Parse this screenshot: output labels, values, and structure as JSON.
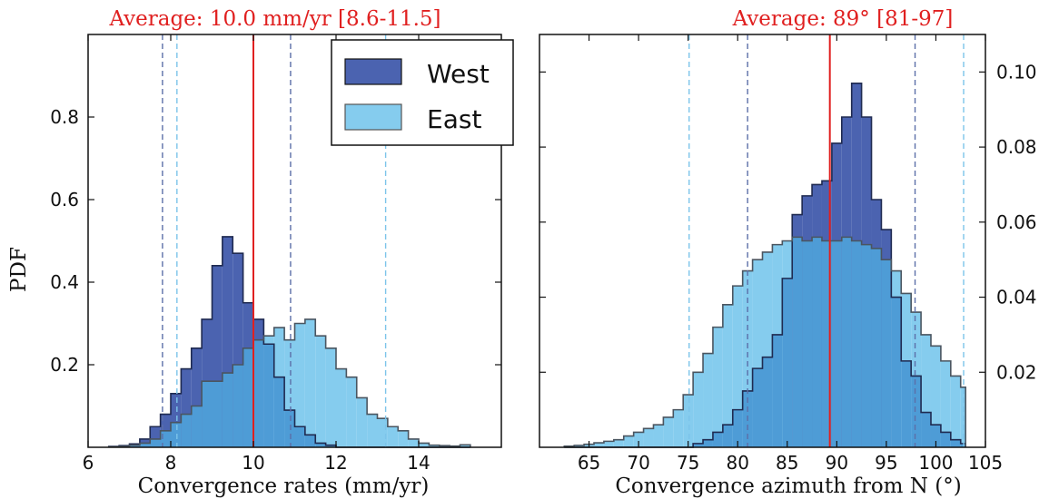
{
  "figure": {
    "ylabel": "PDF"
  },
  "legend": {
    "placement": "top-right of left panel",
    "entries": [
      {
        "label": "West",
        "color": "#4B63B0"
      },
      {
        "label": "East",
        "color": "#85CCEE"
      }
    ]
  },
  "colors": {
    "west": "#4B63B0",
    "east": "#85CCEE",
    "overlap": "#4E9CD6",
    "average_line": "#E02020",
    "title": "#E02020",
    "west_interval_line": "#5C6FA8",
    "east_interval_line": "#7CC4EA"
  },
  "chart_data": [
    {
      "type": "histogram",
      "panel": "left",
      "title": "Average: 10.0 mm/yr [8.6-11.5]",
      "xlabel": "Convergence rates (mm/yr)",
      "ylabel": "PDF",
      "xlim": [
        6,
        16
      ],
      "ylim": [
        0,
        1.0
      ],
      "xticks": [
        6,
        8,
        10,
        12,
        14
      ],
      "yticks": [
        0.2,
        0.4,
        0.6,
        0.8
      ],
      "ytick_labels": [
        "0.2",
        "0.4",
        "0.6",
        "0.8"
      ],
      "grid": false,
      "bin_edges": [
        6.5,
        6.75,
        7.0,
        7.25,
        7.5,
        7.75,
        8.0,
        8.25,
        8.5,
        8.75,
        9.0,
        9.25,
        9.5,
        9.75,
        10.0,
        10.25,
        10.5,
        10.75,
        11.0,
        11.25,
        11.5,
        11.75,
        12.0,
        12.25,
        12.5,
        12.75,
        13.0,
        13.25,
        13.5,
        13.75,
        14.0,
        14.25,
        14.5,
        14.75,
        15.0,
        15.25
      ],
      "series": [
        {
          "name": "West",
          "values": [
            0.002,
            0.004,
            0.008,
            0.02,
            0.05,
            0.08,
            0.13,
            0.19,
            0.24,
            0.31,
            0.44,
            0.51,
            0.47,
            0.35,
            0.31,
            0.25,
            0.17,
            0.09,
            0.05,
            0.03,
            0.01,
            0.005,
            0,
            0,
            0,
            0,
            0,
            0,
            0,
            0,
            0,
            0,
            0,
            0,
            0
          ]
        },
        {
          "name": "East",
          "values": [
            0.001,
            0.002,
            0.005,
            0.01,
            0.02,
            0.04,
            0.06,
            0.08,
            0.1,
            0.16,
            0.16,
            0.18,
            0.2,
            0.24,
            0.26,
            0.27,
            0.29,
            0.26,
            0.3,
            0.31,
            0.27,
            0.24,
            0.19,
            0.17,
            0.12,
            0.08,
            0.07,
            0.05,
            0.04,
            0.02,
            0.01,
            0.005,
            0.004,
            0.003,
            0.006
          ]
        }
      ],
      "average": 10.0,
      "interval_lines": [
        {
          "series": "West",
          "values": [
            7.8,
            10.9
          ]
        },
        {
          "series": "East",
          "values": [
            8.15,
            13.2
          ]
        }
      ]
    },
    {
      "type": "histogram",
      "panel": "right",
      "title": "Average: 89° [81-97]",
      "xlabel": "Convergence azimuth from N (°)",
      "xlim": [
        60,
        105
      ],
      "ylim": [
        0,
        0.11
      ],
      "xticks": [
        65,
        70,
        75,
        80,
        85,
        90,
        95,
        100,
        105
      ],
      "yticks": [
        0.02,
        0.04,
        0.06,
        0.08,
        0.1
      ],
      "ytick_labels": [
        "0.02",
        "0.04",
        "0.06",
        "0.08",
        "0.10"
      ],
      "yaxis_side": "right",
      "grid": false,
      "bin_edges": [
        62.5,
        63.5,
        64.5,
        65.5,
        66.5,
        67.5,
        68.5,
        69.5,
        70.5,
        71.5,
        72.5,
        73.5,
        74.5,
        75.5,
        76.5,
        77.5,
        78.5,
        79.5,
        80.5,
        81.5,
        82.5,
        83.5,
        84.5,
        85.5,
        86.5,
        87.5,
        88.5,
        89.5,
        90.5,
        91.5,
        92.5,
        93.5,
        94.5,
        95.5,
        96.5,
        97.5,
        98.5,
        99.5,
        100.5,
        101.5,
        102.5,
        103.0
      ],
      "series": [
        {
          "name": "West",
          "values": [
            0,
            0,
            0,
            0,
            0,
            0,
            0,
            0,
            0,
            0,
            0,
            0,
            0,
            0.001,
            0.002,
            0.004,
            0.006,
            0.01,
            0.015,
            0.021,
            0.024,
            0.03,
            0.045,
            0.062,
            0.067,
            0.07,
            0.071,
            0.081,
            0.088,
            0.097,
            0.088,
            0.066,
            0.058,
            0.04,
            0.023,
            0.019,
            0.0093,
            0.006,
            0.004,
            0.002,
            0.001
          ]
        },
        {
          "name": "East",
          "values": [
            0.0003,
            0.0005,
            0.0008,
            0.0012,
            0.0016,
            0.002,
            0.003,
            0.004,
            0.005,
            0.006,
            0.008,
            0.01,
            0.014,
            0.02,
            0.025,
            0.032,
            0.038,
            0.043,
            0.047,
            0.05,
            0.052,
            0.054,
            0.055,
            0.056,
            0.055,
            0.056,
            0.055,
            0.055,
            0.056,
            0.055,
            0.054,
            0.053,
            0.05,
            0.047,
            0.041,
            0.036,
            0.03,
            0.027,
            0.023,
            0.019,
            0.016
          ]
        }
      ],
      "average": 89.3,
      "interval_lines": [
        {
          "series": "West",
          "values": [
            81.0,
            97.9
          ]
        },
        {
          "series": "East",
          "values": [
            75.1,
            102.8
          ]
        }
      ]
    }
  ]
}
